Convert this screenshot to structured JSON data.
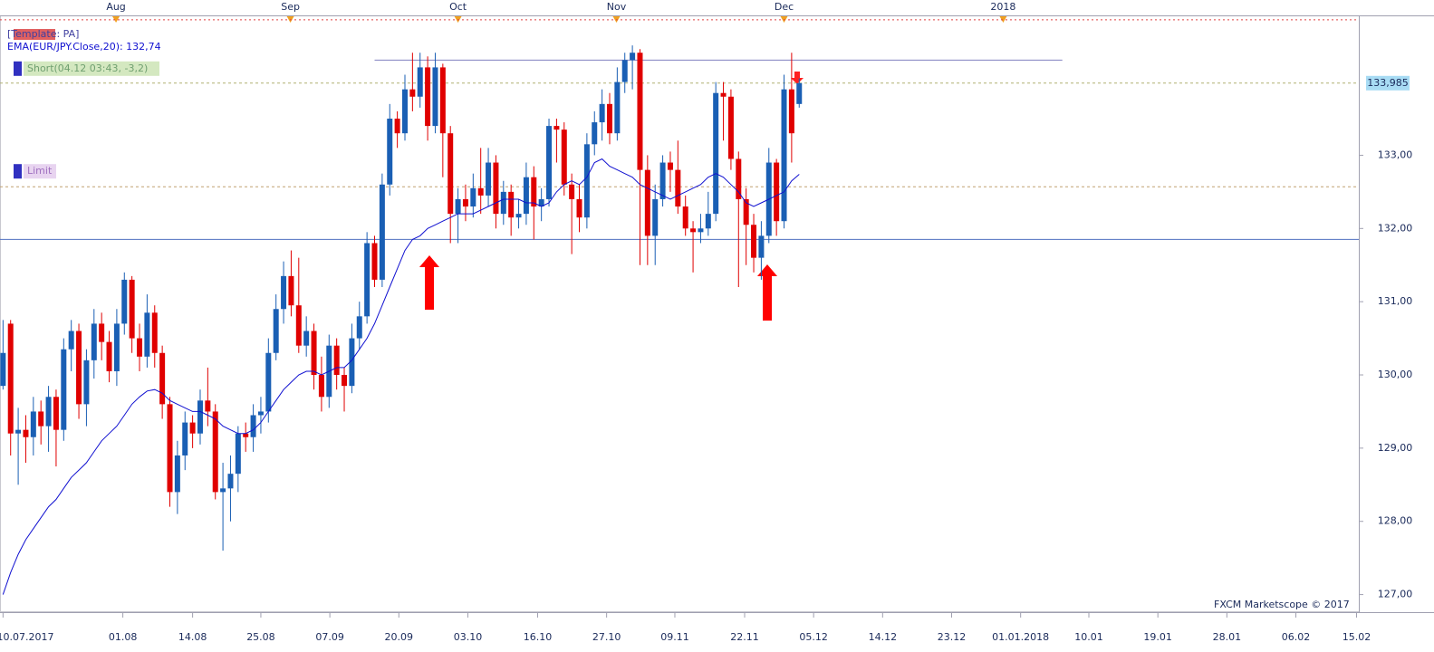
{
  "chart_data": {
    "type": "candlestick",
    "template_label": "[Template: PA]",
    "ema_label": "EMA(EUR/JPY.Close,20): 132,74",
    "watermark": "FXCM Marketscope © 2017",
    "current_price": {
      "value": 133.985,
      "label": "133,985"
    },
    "up_color": "#1a5fb4",
    "down_color": "#e00000",
    "ema_color": "#1010d0",
    "ohlc": [
      [
        129.85,
        130.75,
        129.8,
        130.3
      ],
      [
        130.7,
        130.75,
        128.9,
        129.2
      ],
      [
        129.2,
        129.55,
        128.5,
        129.25
      ],
      [
        129.25,
        129.45,
        128.8,
        129.15
      ],
      [
        129.15,
        129.7,
        128.9,
        129.5
      ],
      [
        129.5,
        129.65,
        129.05,
        129.3
      ],
      [
        129.3,
        129.85,
        128.95,
        129.7
      ],
      [
        129.7,
        129.8,
        128.75,
        129.25
      ],
      [
        129.25,
        130.5,
        129.1,
        130.35
      ],
      [
        130.35,
        130.75,
        130.05,
        130.6
      ],
      [
        130.6,
        130.7,
        129.4,
        129.6
      ],
      [
        129.6,
        130.35,
        129.3,
        130.2
      ],
      [
        130.2,
        130.9,
        129.95,
        130.7
      ],
      [
        130.7,
        130.85,
        130.2,
        130.45
      ],
      [
        130.45,
        130.6,
        129.9,
        130.05
      ],
      [
        130.05,
        130.9,
        129.85,
        130.7
      ],
      [
        130.7,
        131.4,
        130.55,
        131.3
      ],
      [
        131.3,
        131.35,
        130.3,
        130.5
      ],
      [
        130.5,
        130.7,
        130.05,
        130.25
      ],
      [
        130.25,
        131.1,
        130.1,
        130.85
      ],
      [
        130.85,
        130.95,
        130.1,
        130.3
      ],
      [
        130.3,
        130.4,
        129.4,
        129.6
      ],
      [
        129.6,
        129.7,
        128.2,
        128.4
      ],
      [
        128.4,
        129.1,
        128.1,
        128.9
      ],
      [
        128.9,
        129.5,
        128.7,
        129.35
      ],
      [
        129.35,
        129.45,
        129.0,
        129.2
      ],
      [
        129.2,
        129.8,
        129.05,
        129.65
      ],
      [
        129.65,
        130.1,
        129.3,
        129.5
      ],
      [
        129.5,
        129.6,
        128.3,
        128.4
      ],
      [
        128.4,
        128.8,
        127.6,
        128.45
      ],
      [
        128.45,
        128.9,
        128.0,
        128.65
      ],
      [
        128.65,
        129.3,
        128.4,
        129.2
      ],
      [
        129.2,
        129.35,
        128.95,
        129.15
      ],
      [
        129.15,
        129.6,
        128.95,
        129.45
      ],
      [
        129.45,
        129.7,
        129.2,
        129.5
      ],
      [
        129.5,
        130.5,
        129.35,
        130.3
      ],
      [
        130.3,
        131.1,
        130.2,
        130.9
      ],
      [
        130.9,
        131.55,
        130.7,
        131.35
      ],
      [
        131.35,
        131.7,
        130.8,
        130.95
      ],
      [
        130.95,
        131.6,
        130.3,
        130.4
      ],
      [
        130.4,
        130.8,
        130.25,
        130.6
      ],
      [
        130.6,
        130.7,
        129.8,
        130.0
      ],
      [
        130.0,
        130.25,
        129.5,
        129.7
      ],
      [
        129.7,
        130.55,
        129.55,
        130.4
      ],
      [
        130.4,
        130.5,
        129.8,
        130.0
      ],
      [
        130.0,
        130.1,
        129.5,
        129.85
      ],
      [
        129.85,
        130.7,
        129.75,
        130.5
      ],
      [
        130.5,
        131.0,
        130.35,
        130.8
      ],
      [
        130.8,
        131.95,
        130.7,
        131.8
      ],
      [
        131.8,
        131.9,
        131.2,
        131.3
      ],
      [
        131.3,
        132.75,
        131.2,
        132.6
      ],
      [
        132.6,
        133.7,
        132.45,
        133.5
      ],
      [
        133.5,
        133.6,
        133.1,
        133.3
      ],
      [
        133.3,
        134.1,
        133.2,
        133.9
      ],
      [
        133.9,
        134.4,
        133.6,
        133.8
      ],
      [
        133.8,
        134.4,
        133.65,
        134.2
      ],
      [
        134.2,
        134.35,
        133.2,
        133.4
      ],
      [
        133.4,
        134.4,
        133.3,
        134.2
      ],
      [
        134.2,
        134.25,
        132.7,
        133.3
      ],
      [
        133.3,
        133.4,
        131.8,
        132.2
      ],
      [
        132.2,
        132.55,
        131.8,
        132.4
      ],
      [
        132.4,
        132.6,
        132.1,
        132.3
      ],
      [
        132.3,
        132.75,
        132.15,
        132.55
      ],
      [
        132.55,
        133.1,
        132.2,
        132.45
      ],
      [
        132.45,
        133.1,
        132.3,
        132.9
      ],
      [
        132.9,
        133.0,
        132.0,
        132.2
      ],
      [
        132.2,
        132.65,
        132.05,
        132.5
      ],
      [
        132.5,
        132.6,
        131.9,
        132.15
      ],
      [
        132.15,
        132.4,
        132.0,
        132.2
      ],
      [
        132.2,
        132.9,
        132.05,
        132.7
      ],
      [
        132.7,
        132.85,
        131.85,
        132.3
      ],
      [
        132.3,
        132.55,
        132.1,
        132.4
      ],
      [
        132.4,
        133.5,
        132.3,
        133.4
      ],
      [
        133.4,
        133.5,
        132.9,
        133.35
      ],
      [
        133.35,
        133.45,
        132.45,
        132.6
      ],
      [
        132.6,
        132.75,
        131.65,
        132.4
      ],
      [
        132.4,
        132.6,
        131.95,
        132.15
      ],
      [
        132.15,
        133.3,
        132.0,
        133.15
      ],
      [
        133.15,
        133.6,
        133.0,
        133.45
      ],
      [
        133.45,
        133.9,
        133.2,
        133.7
      ],
      [
        133.7,
        133.85,
        133.15,
        133.3
      ],
      [
        133.3,
        134.2,
        133.2,
        134.0
      ],
      [
        134.0,
        134.4,
        133.85,
        134.3
      ],
      [
        134.3,
        134.5,
        133.9,
        134.4
      ],
      [
        134.4,
        134.45,
        131.5,
        132.8
      ],
      [
        132.8,
        133.0,
        131.5,
        131.9
      ],
      [
        131.9,
        132.6,
        131.5,
        132.4
      ],
      [
        132.4,
        133.0,
        132.3,
        132.9
      ],
      [
        132.9,
        133.05,
        132.5,
        132.8
      ],
      [
        132.8,
        133.2,
        132.2,
        132.3
      ],
      [
        132.3,
        132.45,
        131.9,
        132.0
      ],
      [
        132.0,
        132.1,
        131.4,
        131.95
      ],
      [
        131.95,
        132.2,
        131.8,
        132.0
      ],
      [
        132.0,
        132.5,
        131.9,
        132.2
      ],
      [
        132.2,
        134.0,
        132.1,
        133.85
      ],
      [
        133.85,
        134.0,
        133.2,
        133.8
      ],
      [
        133.8,
        133.9,
        132.8,
        132.95
      ],
      [
        132.95,
        133.05,
        131.2,
        132.4
      ],
      [
        132.4,
        132.55,
        131.5,
        132.05
      ],
      [
        132.05,
        132.2,
        131.4,
        131.6
      ],
      [
        131.6,
        132.1,
        131.3,
        131.9
      ],
      [
        131.9,
        133.1,
        131.8,
        132.9
      ],
      [
        132.9,
        132.95,
        131.9,
        132.1
      ],
      [
        132.1,
        134.1,
        132.0,
        133.9
      ],
      [
        133.9,
        134.4,
        132.9,
        133.3
      ],
      [
        133.7,
        134.05,
        133.65,
        133.985
      ]
    ],
    "ema": [
      127.0,
      127.3,
      127.55,
      127.75,
      127.9,
      128.05,
      128.2,
      128.3,
      128.45,
      128.6,
      128.7,
      128.8,
      128.95,
      129.1,
      129.2,
      129.3,
      129.45,
      129.6,
      129.7,
      129.78,
      129.8,
      129.75,
      129.65,
      129.6,
      129.55,
      129.5,
      129.5,
      129.45,
      129.4,
      129.3,
      129.25,
      129.2,
      129.2,
      129.25,
      129.35,
      129.5,
      129.65,
      129.8,
      129.9,
      130.0,
      130.05,
      130.05,
      130.0,
      130.05,
      130.1,
      130.1,
      130.2,
      130.35,
      130.5,
      130.7,
      130.95,
      131.2,
      131.45,
      131.7,
      131.85,
      131.9,
      132.0,
      132.05,
      132.1,
      132.15,
      132.2,
      132.2,
      132.2,
      132.25,
      132.3,
      132.35,
      132.4,
      132.4,
      132.4,
      132.35,
      132.35,
      132.3,
      132.35,
      132.5,
      132.6,
      132.65,
      132.6,
      132.7,
      132.9,
      132.95,
      132.85,
      132.8,
      132.75,
      132.7,
      132.6,
      132.55,
      132.5,
      132.45,
      132.4,
      132.45,
      132.5,
      132.55,
      132.6,
      132.7,
      132.75,
      132.7,
      132.6,
      132.5,
      132.35,
      132.3,
      132.35,
      132.4,
      132.45,
      132.5,
      132.65,
      132.74
    ],
    "levels": {
      "resistance": {
        "value": 134.3,
        "from": 49,
        "to": 139.7,
        "color": "#8080c0"
      },
      "support": {
        "value": 131.85,
        "color": "#5070c0"
      },
      "short": {
        "value": 133.985,
        "label": "Short(04.12 03:43, -3,2)",
        "color": "#b0b070"
      },
      "limit": {
        "value": 132.57,
        "label": "Limit",
        "color": "#c0a070"
      },
      "stop": {
        "value": 134.85,
        "color": "#e04040"
      }
    },
    "xlim": [
      -0.4,
      178.8
    ],
    "ylim": [
      126.76,
      134.91
    ],
    "yticks": [
      {
        "value": 127,
        "label": "127,00"
      },
      {
        "value": 128,
        "label": "128,00"
      },
      {
        "value": 129,
        "label": "129,00"
      },
      {
        "value": 130,
        "label": "130,00"
      },
      {
        "value": 131,
        "label": "131,00"
      },
      {
        "value": 132,
        "label": "132,00"
      },
      {
        "value": 133,
        "label": "133,00"
      }
    ],
    "xticks": [
      {
        "value": 0,
        "label": "10.07.2017"
      },
      {
        "value": 15.8,
        "label": "01.08"
      },
      {
        "value": 25,
        "label": "14.08"
      },
      {
        "value": 34,
        "label": "25.08"
      },
      {
        "value": 43.1,
        "label": "07.09"
      },
      {
        "value": 52.2,
        "label": "20.09"
      },
      {
        "value": 61.3,
        "label": "03.10"
      },
      {
        "value": 70.5,
        "label": "16.10"
      },
      {
        "value": 79.6,
        "label": "27.10"
      },
      {
        "value": 88.6,
        "label": "09.11"
      },
      {
        "value": 97.8,
        "label": "22.11"
      },
      {
        "value": 106.9,
        "label": "05.12"
      },
      {
        "value": 116,
        "label": "14.12"
      },
      {
        "value": 125.1,
        "label": "23.12"
      },
      {
        "value": 134.2,
        "label": "01.01.2018"
      },
      {
        "value": 143.2,
        "label": "10.01"
      },
      {
        "value": 152.3,
        "label": "19.01"
      },
      {
        "value": 161.4,
        "label": "28.01"
      },
      {
        "value": 170.5,
        "label": "06.02"
      },
      {
        "value": 178.5,
        "label": "15.02"
      }
    ],
    "top_ticks": [
      {
        "value": 14.9,
        "label": "Aug"
      },
      {
        "value": 37.9,
        "label": "Sep"
      },
      {
        "value": 60,
        "label": "Oct"
      },
      {
        "value": 80.9,
        "label": "Nov"
      },
      {
        "value": 103,
        "label": "Dec"
      },
      {
        "value": 131.9,
        "label": "2018"
      }
    ]
  }
}
